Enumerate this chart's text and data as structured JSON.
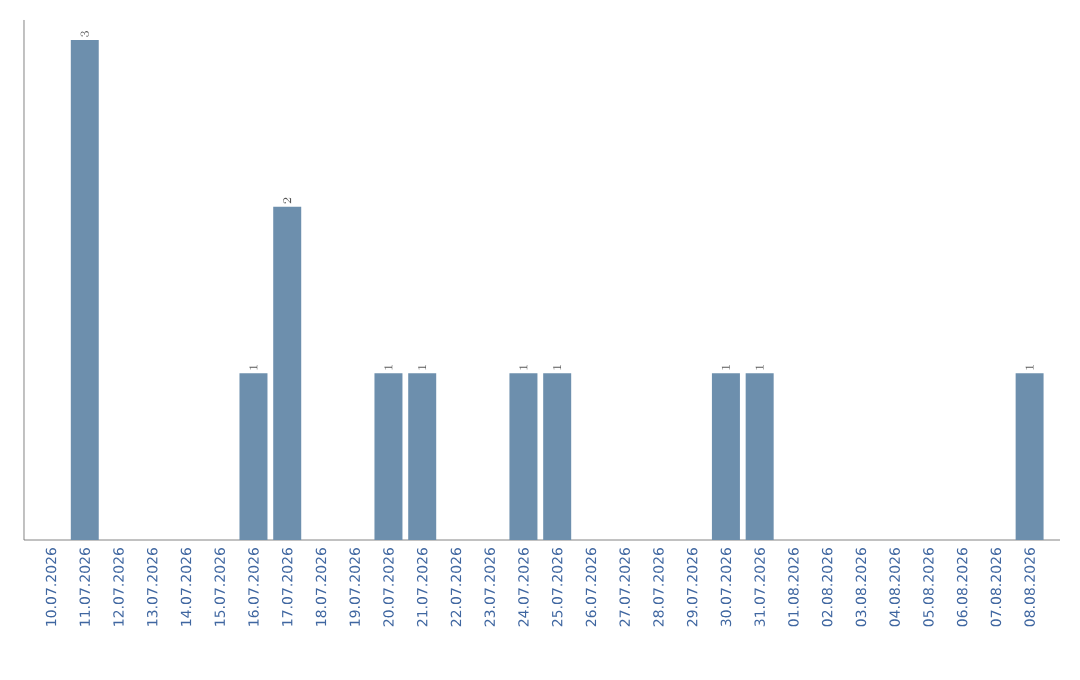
{
  "chart_data": {
    "type": "bar",
    "categories": [
      "10.07.2026",
      "11.07.2026",
      "12.07.2026",
      "13.07.2026",
      "14.07.2026",
      "15.07.2026",
      "16.07.2026",
      "17.07.2026",
      "18.07.2026",
      "19.07.2026",
      "20.07.2026",
      "21.07.2026",
      "22.07.2026",
      "23.07.2026",
      "24.07.2026",
      "25.07.2026",
      "26.07.2026",
      "27.07.2026",
      "28.07.2026",
      "29.07.2026",
      "30.07.2026",
      "31.07.2026",
      "01.08.2026",
      "02.08.2026",
      "03.08.2026",
      "04.08.2026",
      "05.08.2026",
      "06.08.2026",
      "07.08.2026",
      "08.08.2026"
    ],
    "values": [
      null,
      3,
      null,
      null,
      null,
      null,
      1,
      2,
      null,
      null,
      1,
      1,
      null,
      null,
      1,
      1,
      null,
      null,
      null,
      null,
      1,
      1,
      null,
      null,
      null,
      null,
      null,
      null,
      null,
      1
    ],
    "color": "#6d8fad",
    "data_labels": true,
    "grid": false
  }
}
